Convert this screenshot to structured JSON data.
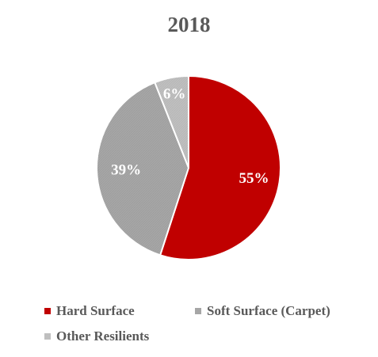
{
  "chart_data": {
    "type": "pie",
    "title": "2018",
    "slices": [
      {
        "label": "Hard Surface",
        "value": 55,
        "display": "55%",
        "color": "#C00000"
      },
      {
        "label": "Soft Surface (Carpet)",
        "value": 39,
        "display": "39%",
        "color": "#A6A6A6"
      },
      {
        "label": "Other Resilients",
        "value": 6,
        "display": "6%",
        "color": "#BFBFBF"
      }
    ],
    "start_angle": "12 o'clock",
    "direction": "clockwise",
    "legend_position": "bottom"
  }
}
